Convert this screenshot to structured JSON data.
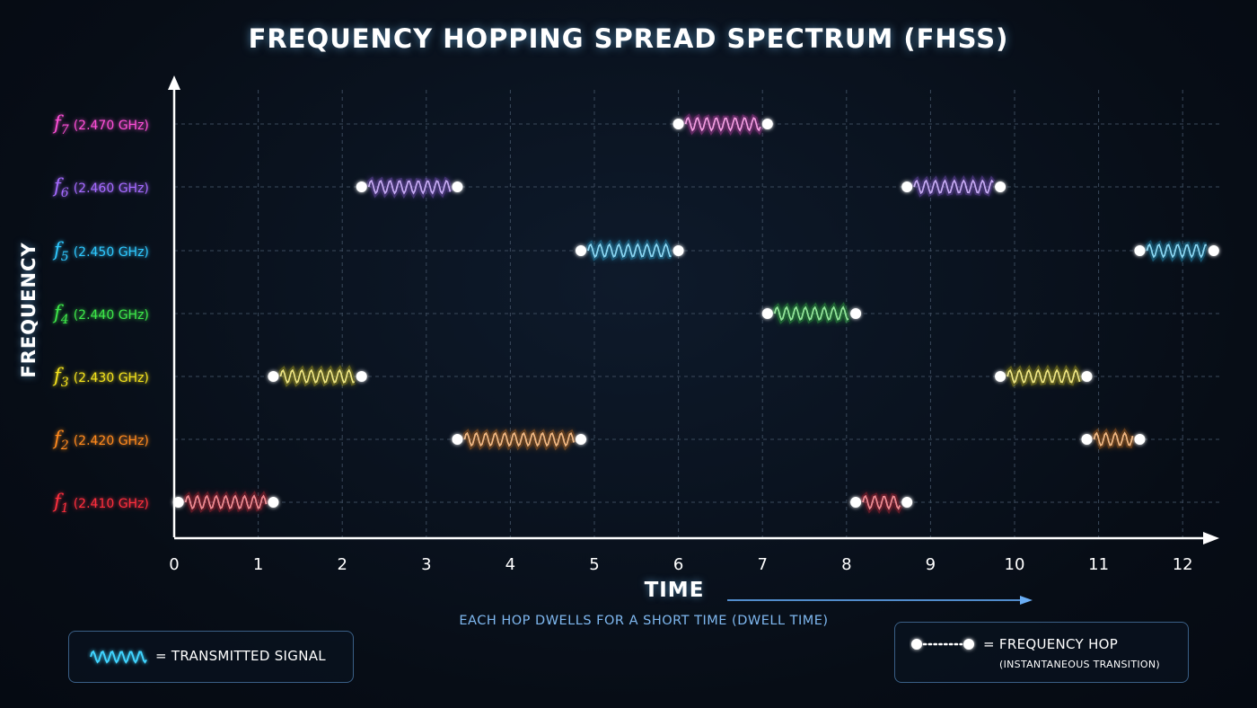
{
  "title": "FREQUENCY HOPPING SPREAD SPECTRUM (FHSS)",
  "axes": {
    "ylabel": "FREQUENCY",
    "xlabel": "TIME",
    "x_ticks": [
      0,
      1,
      2,
      3,
      4,
      5,
      6,
      7,
      8,
      9,
      10,
      11,
      12
    ],
    "xlim": [
      0,
      12.4
    ]
  },
  "dwell_note": "EACH HOP DWELLS FOR A SHORT TIME (DWELL TIME)",
  "channels": [
    {
      "sym": "f",
      "sub": "7",
      "freq": "(2.470 GHz)",
      "color": "#ff4fd8"
    },
    {
      "sym": "f",
      "sub": "6",
      "freq": "(2.460 GHz)",
      "color": "#a56bff"
    },
    {
      "sym": "f",
      "sub": "5",
      "freq": "(2.450 GHz)",
      "color": "#2fc8ff"
    },
    {
      "sym": "f",
      "sub": "4",
      "freq": "(2.440 GHz)",
      "color": "#3ee84a"
    },
    {
      "sym": "f",
      "sub": "3",
      "freq": "(2.430 GHz)",
      "color": "#f4e21c"
    },
    {
      "sym": "f",
      "sub": "2",
      "freq": "(2.420 GHz)",
      "color": "#ff8a1e"
    },
    {
      "sym": "f",
      "sub": "1",
      "freq": "(2.410 GHz)",
      "color": "#ff2e3e"
    }
  ],
  "chart_data": {
    "type": "line",
    "hops": [
      {
        "channel": 1,
        "t_start": 0.05,
        "t_end": 1.18
      },
      {
        "channel": 3,
        "t_start": 1.18,
        "t_end": 2.23
      },
      {
        "channel": 6,
        "t_start": 2.23,
        "t_end": 3.37
      },
      {
        "channel": 2,
        "t_start": 3.37,
        "t_end": 4.84
      },
      {
        "channel": 5,
        "t_start": 4.84,
        "t_end": 6.0
      },
      {
        "channel": 7,
        "t_start": 6.0,
        "t_end": 7.06
      },
      {
        "channel": 4,
        "t_start": 7.06,
        "t_end": 8.11
      },
      {
        "channel": 1,
        "t_start": 8.11,
        "t_end": 8.72
      },
      {
        "channel": 6,
        "t_start": 8.72,
        "t_end": 9.83
      },
      {
        "channel": 3,
        "t_start": 9.83,
        "t_end": 10.86
      },
      {
        "channel": 2,
        "t_start": 10.86,
        "t_end": 11.49
      },
      {
        "channel": 5,
        "t_start": 11.49,
        "t_end": 12.37
      }
    ]
  },
  "legend": {
    "signal_label": "= TRANSMITTED SIGNAL",
    "signal_color": "#3fd4ff",
    "hop_label": "= FREQUENCY HOP",
    "hop_sublabel": "(INSTANTANEOUS TRANSITION)"
  }
}
